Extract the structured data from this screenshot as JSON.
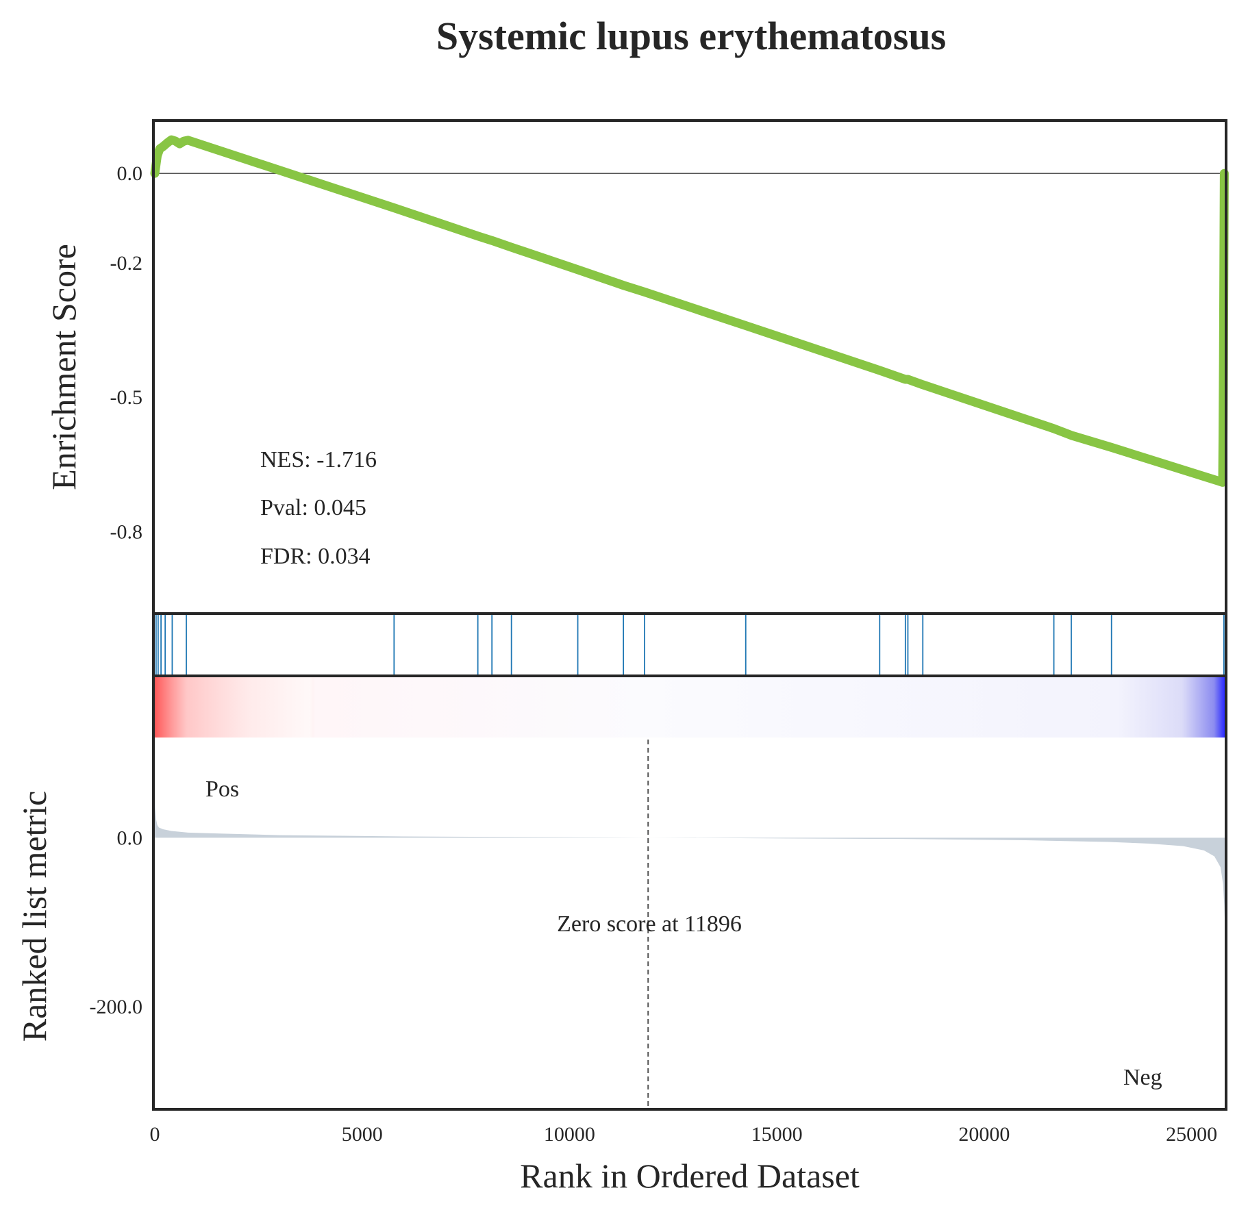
{
  "chart_data": {
    "type": "line",
    "title": "Systemic lupus erythematosus",
    "xlabel": "Rank in Ordered Dataset",
    "xlim": [
      0,
      25800
    ],
    "x_ticks": [
      "0",
      "5000",
      "10000",
      "15000",
      "20000",
      "25000"
    ],
    "enrichment_panel": {
      "ylabel": "Enrichment Score",
      "ylim": [
        -0.98,
        0.115
      ],
      "y_ticks": [
        "0.0",
        "-0.2",
        "-0.5",
        "-0.8"
      ],
      "y_tick_values": [
        0.0,
        -0.2,
        -0.5,
        -0.8
      ],
      "series": [
        {
          "color": "#88c544",
          "x": [
            0,
            60,
            120,
            200,
            300,
            400,
            500,
            600,
            700,
            800,
            5770,
            7790,
            8130,
            8600,
            10200,
            11300,
            11810,
            14250,
            17480,
            18100,
            18160,
            18520,
            21680,
            22100,
            23070,
            25750,
            25760,
            25770,
            25780,
            25790
          ],
          "y": [
            0.0,
            0.04,
            0.055,
            0.06,
            0.068,
            0.075,
            0.072,
            0.066,
            0.072,
            0.074,
            -0.077,
            -0.14,
            -0.15,
            -0.165,
            -0.215,
            -0.25,
            -0.265,
            -0.34,
            -0.44,
            -0.46,
            -0.46,
            -0.472,
            -0.57,
            -0.585,
            -0.612,
            -0.69,
            -0.58,
            -0.42,
            -0.2,
            0.0
          ]
        }
      ],
      "annotations": {
        "nes": "NES: -1.716",
        "pval": "Pval: 0.045",
        "fdr": "FDR: 0.034"
      }
    },
    "hits_panel": {
      "color": "#1f77b4",
      "positions": [
        30,
        80,
        150,
        250,
        420,
        760,
        5770,
        7790,
        8130,
        8600,
        10200,
        11300,
        11810,
        14250,
        17480,
        18100,
        18160,
        18520,
        21680,
        22100,
        23070,
        25780
      ]
    },
    "ranked_panel": {
      "ylabel": "Ranked list metric",
      "ylim": [
        -320,
        190
      ],
      "y_ticks": [
        "0.0",
        "-200.0"
      ],
      "y_tick_values": [
        0,
        -200
      ],
      "fill_color": "#c8d1da",
      "x": [
        0,
        10,
        30,
        60,
        100,
        200,
        400,
        800,
        1500,
        3000,
        6000,
        11896,
        18000,
        21000,
        23000,
        24000,
        24800,
        25300,
        25550,
        25700,
        25760,
        25790,
        25800
      ],
      "y": [
        60,
        35,
        22,
        15,
        12,
        10,
        8,
        6,
        5,
        3,
        1.5,
        0,
        -1.5,
        -3,
        -5,
        -7,
        -10,
        -15,
        -22,
        -35,
        -55,
        -80,
        -95
      ],
      "zero_cross_rank": 11896,
      "zero_score_label": "Zero score at 11896",
      "pos_label": "Pos",
      "neg_label": "Neg",
      "pos_color": "#ff0000",
      "neg_color": "#0000ff"
    }
  }
}
